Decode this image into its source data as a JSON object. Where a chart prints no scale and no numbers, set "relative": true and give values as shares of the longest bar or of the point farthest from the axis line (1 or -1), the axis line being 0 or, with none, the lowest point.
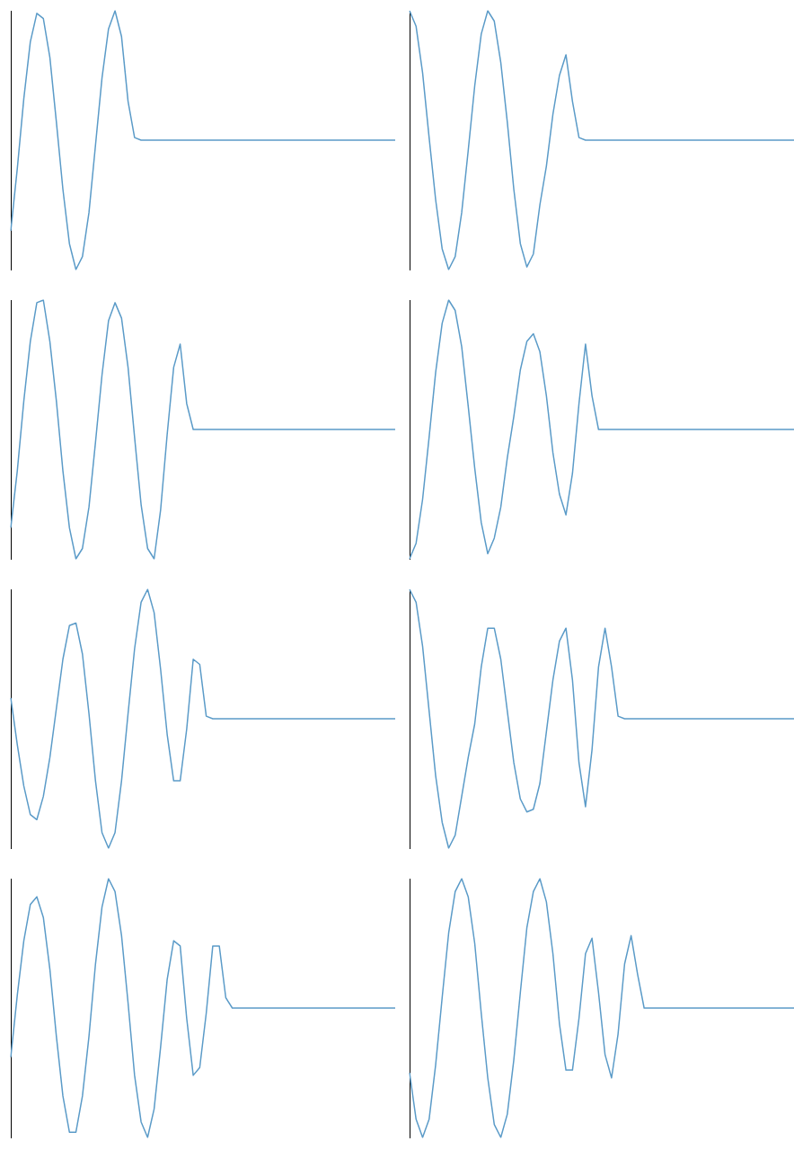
{
  "chart_data": [
    {
      "type": "line",
      "relative": true,
      "color": "#5b9bc8",
      "categories": [
        null,
        null,
        null,
        null,
        null,
        null,
        null,
        null,
        null,
        null,
        null,
        null,
        null,
        null,
        null,
        null,
        null,
        null,
        null,
        null,
        null,
        null,
        null,
        null,
        null,
        null,
        null,
        null,
        null,
        null,
        null,
        null,
        null,
        null,
        null,
        null,
        null,
        null,
        null,
        null,
        null,
        null,
        null,
        null,
        null,
        null,
        null,
        null,
        null,
        null,
        null,
        null,
        null,
        null,
        null,
        null,
        null,
        null,
        null,
        null
      ],
      "tick_labels": false,
      "values": [
        0.15,
        0.39,
        0.66,
        0.88,
        0.99,
        0.97,
        0.82,
        0.57,
        0.31,
        0.1,
        0,
        0.05,
        0.22,
        0.48,
        0.74,
        0.93,
        1,
        0.9,
        0.65,
        0.51,
        0.5,
        0.5,
        0.5,
        0.5,
        0.5,
        0.5,
        0.5,
        0.5,
        0.5,
        0.5,
        0.5,
        0.5,
        0.5,
        0.5,
        0.5,
        0.5,
        0.5,
        0.5,
        0.5,
        0.5,
        0.5,
        0.5,
        0.5,
        0.5,
        0.5,
        0.5,
        0.5,
        0.5,
        0.5,
        0.5,
        0.5,
        0.5,
        0.5,
        0.5,
        0.5,
        0.5,
        0.5,
        0.5,
        0.5,
        0.5
      ]
    },
    {
      "type": "line",
      "relative": true,
      "color": "#5b9bc8",
      "categories": [
        null,
        null,
        null,
        null,
        null,
        null,
        null,
        null,
        null,
        null,
        null,
        null,
        null,
        null,
        null,
        null,
        null,
        null,
        null,
        null,
        null,
        null,
        null,
        null,
        null,
        null,
        null,
        null,
        null,
        null,
        null,
        null,
        null,
        null,
        null,
        null,
        null,
        null,
        null,
        null,
        null,
        null,
        null,
        null,
        null,
        null,
        null,
        null,
        null,
        null,
        null,
        null,
        null,
        null,
        null,
        null,
        null,
        null,
        null,
        null
      ],
      "tick_labels": false,
      "values": [
        1,
        0.94,
        0.76,
        0.51,
        0.27,
        0.08,
        0,
        0.05,
        0.22,
        0.46,
        0.71,
        0.91,
        1,
        0.96,
        0.8,
        0.57,
        0.31,
        0.1,
        0.01,
        0.06,
        0.25,
        0.4,
        0.6,
        0.75,
        0.83,
        0.65,
        0.51,
        0.5,
        0.5,
        0.5,
        0.5,
        0.5,
        0.5,
        0.5,
        0.5,
        0.5,
        0.5,
        0.5,
        0.5,
        0.5,
        0.5,
        0.5,
        0.5,
        0.5,
        0.5,
        0.5,
        0.5,
        0.5,
        0.5,
        0.5,
        0.5,
        0.5,
        0.5,
        0.5,
        0.5,
        0.5,
        0.5,
        0.5,
        0.5,
        0.5
      ]
    },
    {
      "type": "line",
      "relative": true,
      "color": "#5b9bc8",
      "categories": [
        null,
        null,
        null,
        null,
        null,
        null,
        null,
        null,
        null,
        null,
        null,
        null,
        null,
        null,
        null,
        null,
        null,
        null,
        null,
        null,
        null,
        null,
        null,
        null,
        null,
        null,
        null,
        null,
        null,
        null,
        null,
        null,
        null,
        null,
        null,
        null,
        null,
        null,
        null,
        null,
        null,
        null,
        null,
        null,
        null,
        null,
        null,
        null,
        null,
        null,
        null,
        null,
        null,
        null,
        null,
        null,
        null,
        null,
        null,
        null
      ],
      "tick_labels": false,
      "values": [
        0.12,
        0.34,
        0.61,
        0.84,
        0.99,
        1,
        0.84,
        0.61,
        0.34,
        0.12,
        0,
        0.04,
        0.2,
        0.45,
        0.71,
        0.92,
        0.99,
        0.93,
        0.74,
        0.47,
        0.21,
        0.04,
        0,
        0.19,
        0.48,
        0.74,
        0.83,
        0.6,
        0.5,
        0.5,
        0.5,
        0.5,
        0.5,
        0.5,
        0.5,
        0.5,
        0.5,
        0.5,
        0.5,
        0.5,
        0.5,
        0.5,
        0.5,
        0.5,
        0.5,
        0.5,
        0.5,
        0.5,
        0.5,
        0.5,
        0.5,
        0.5,
        0.5,
        0.5,
        0.5,
        0.5,
        0.5,
        0.5,
        0.5,
        0.5
      ]
    },
    {
      "type": "line",
      "relative": true,
      "color": "#5b9bc8",
      "categories": [
        null,
        null,
        null,
        null,
        null,
        null,
        null,
        null,
        null,
        null,
        null,
        null,
        null,
        null,
        null,
        null,
        null,
        null,
        null,
        null,
        null,
        null,
        null,
        null,
        null,
        null,
        null,
        null,
        null,
        null,
        null,
        null,
        null,
        null,
        null,
        null,
        null,
        null,
        null,
        null,
        null,
        null,
        null,
        null,
        null,
        null,
        null,
        null,
        null,
        null,
        null,
        null,
        null,
        null,
        null,
        null,
        null,
        null,
        null,
        null
      ],
      "tick_labels": false,
      "values": [
        0,
        0.06,
        0.23,
        0.47,
        0.72,
        0.91,
        1,
        0.96,
        0.82,
        0.59,
        0.35,
        0.14,
        0.02,
        0.08,
        0.2,
        0.39,
        0.55,
        0.73,
        0.84,
        0.87,
        0.8,
        0.63,
        0.41,
        0.25,
        0.17,
        0.33,
        0.6,
        0.83,
        0.63,
        0.5,
        0.5,
        0.5,
        0.5,
        0.5,
        0.5,
        0.5,
        0.5,
        0.5,
        0.5,
        0.5,
        0.5,
        0.5,
        0.5,
        0.5,
        0.5,
        0.5,
        0.5,
        0.5,
        0.5,
        0.5,
        0.5,
        0.5,
        0.5,
        0.5,
        0.5,
        0.5,
        0.5,
        0.5,
        0.5,
        0.5
      ]
    },
    {
      "type": "line",
      "relative": true,
      "color": "#5b9bc8",
      "categories": [
        null,
        null,
        null,
        null,
        null,
        null,
        null,
        null,
        null,
        null,
        null,
        null,
        null,
        null,
        null,
        null,
        null,
        null,
        null,
        null,
        null,
        null,
        null,
        null,
        null,
        null,
        null,
        null,
        null,
        null,
        null,
        null,
        null,
        null,
        null,
        null,
        null,
        null,
        null,
        null,
        null,
        null,
        null,
        null,
        null,
        null,
        null,
        null,
        null,
        null,
        null,
        null,
        null,
        null,
        null,
        null,
        null,
        null,
        null,
        null
      ],
      "tick_labels": false,
      "values": [
        0.58,
        0.4,
        0.24,
        0.13,
        0.11,
        0.2,
        0.35,
        0.54,
        0.73,
        0.86,
        0.87,
        0.75,
        0.52,
        0.26,
        0.06,
        0,
        0.06,
        0.26,
        0.52,
        0.77,
        0.95,
        1,
        0.91,
        0.69,
        0.44,
        0.26,
        0.26,
        0.46,
        0.73,
        0.71,
        0.51,
        0.5,
        0.5,
        0.5,
        0.5,
        0.5,
        0.5,
        0.5,
        0.5,
        0.5,
        0.5,
        0.5,
        0.5,
        0.5,
        0.5,
        0.5,
        0.5,
        0.5,
        0.5,
        0.5,
        0.5,
        0.5,
        0.5,
        0.5,
        0.5,
        0.5,
        0.5,
        0.5,
        0.5,
        0.5
      ]
    },
    {
      "type": "line",
      "relative": true,
      "color": "#5b9bc8",
      "categories": [
        null,
        null,
        null,
        null,
        null,
        null,
        null,
        null,
        null,
        null,
        null,
        null,
        null,
        null,
        null,
        null,
        null,
        null,
        null,
        null,
        null,
        null,
        null,
        null,
        null,
        null,
        null,
        null,
        null,
        null,
        null,
        null,
        null,
        null,
        null,
        null,
        null,
        null,
        null,
        null,
        null,
        null,
        null,
        null,
        null,
        null,
        null,
        null,
        null,
        null,
        null,
        null,
        null,
        null,
        null,
        null,
        null,
        null,
        null,
        null
      ],
      "tick_labels": false,
      "values": [
        1,
        0.95,
        0.78,
        0.53,
        0.28,
        0.1,
        0,
        0.05,
        0.2,
        0.35,
        0.48,
        0.7,
        0.85,
        0.85,
        0.73,
        0.53,
        0.33,
        0.19,
        0.14,
        0.15,
        0.25,
        0.45,
        0.65,
        0.8,
        0.85,
        0.65,
        0.33,
        0.16,
        0.38,
        0.7,
        0.85,
        0.7,
        0.51,
        0.5,
        0.5,
        0.5,
        0.5,
        0.5,
        0.5,
        0.5,
        0.5,
        0.5,
        0.5,
        0.5,
        0.5,
        0.5,
        0.5,
        0.5,
        0.5,
        0.5,
        0.5,
        0.5,
        0.5,
        0.5,
        0.5,
        0.5,
        0.5,
        0.5,
        0.5,
        0.5
      ]
    },
    {
      "type": "line",
      "relative": true,
      "color": "#5b9bc8",
      "categories": [
        null,
        null,
        null,
        null,
        null,
        null,
        null,
        null,
        null,
        null,
        null,
        null,
        null,
        null,
        null,
        null,
        null,
        null,
        null,
        null,
        null,
        null,
        null,
        null,
        null,
        null,
        null,
        null,
        null,
        null,
        null,
        null,
        null,
        null,
        null,
        null,
        null,
        null,
        null,
        null,
        null,
        null,
        null,
        null,
        null,
        null,
        null,
        null,
        null,
        null,
        null,
        null,
        null,
        null,
        null,
        null,
        null,
        null,
        null,
        null
      ],
      "tick_labels": false,
      "values": [
        0.31,
        0.55,
        0.76,
        0.9,
        0.93,
        0.85,
        0.65,
        0.39,
        0.16,
        0.02,
        0.02,
        0.16,
        0.39,
        0.67,
        0.89,
        1,
        0.95,
        0.78,
        0.52,
        0.24,
        0.06,
        0,
        0.11,
        0.35,
        0.61,
        0.76,
        0.74,
        0.46,
        0.24,
        0.27,
        0.48,
        0.74,
        0.74,
        0.54,
        0.5,
        0.5,
        0.5,
        0.5,
        0.5,
        0.5,
        0.5,
        0.5,
        0.5,
        0.5,
        0.5,
        0.5,
        0.5,
        0.5,
        0.5,
        0.5,
        0.5,
        0.5,
        0.5,
        0.5,
        0.5,
        0.5,
        0.5,
        0.5,
        0.5,
        0.5
      ]
    },
    {
      "type": "line",
      "relative": true,
      "color": "#5b9bc8",
      "categories": [
        null,
        null,
        null,
        null,
        null,
        null,
        null,
        null,
        null,
        null,
        null,
        null,
        null,
        null,
        null,
        null,
        null,
        null,
        null,
        null,
        null,
        null,
        null,
        null,
        null,
        null,
        null,
        null,
        null,
        null,
        null,
        null,
        null,
        null,
        null,
        null,
        null,
        null,
        null,
        null,
        null,
        null,
        null,
        null,
        null,
        null,
        null,
        null,
        null,
        null,
        null,
        null,
        null,
        null,
        null,
        null,
        null,
        null,
        null,
        null
      ],
      "tick_labels": false,
      "values": [
        0.25,
        0.07,
        0,
        0.07,
        0.28,
        0.54,
        0.79,
        0.95,
        1,
        0.93,
        0.75,
        0.48,
        0.23,
        0.05,
        0,
        0.09,
        0.3,
        0.56,
        0.81,
        0.95,
        1,
        0.91,
        0.71,
        0.44,
        0.26,
        0.26,
        0.46,
        0.71,
        0.77,
        0.56,
        0.32,
        0.23,
        0.4,
        0.67,
        0.78,
        0.63,
        0.5,
        0.5,
        0.5,
        0.5,
        0.5,
        0.5,
        0.5,
        0.5,
        0.5,
        0.5,
        0.5,
        0.5,
        0.5,
        0.5,
        0.5,
        0.5,
        0.5,
        0.5,
        0.5,
        0.5,
        0.5,
        0.5,
        0.5,
        0.5
      ]
    }
  ]
}
